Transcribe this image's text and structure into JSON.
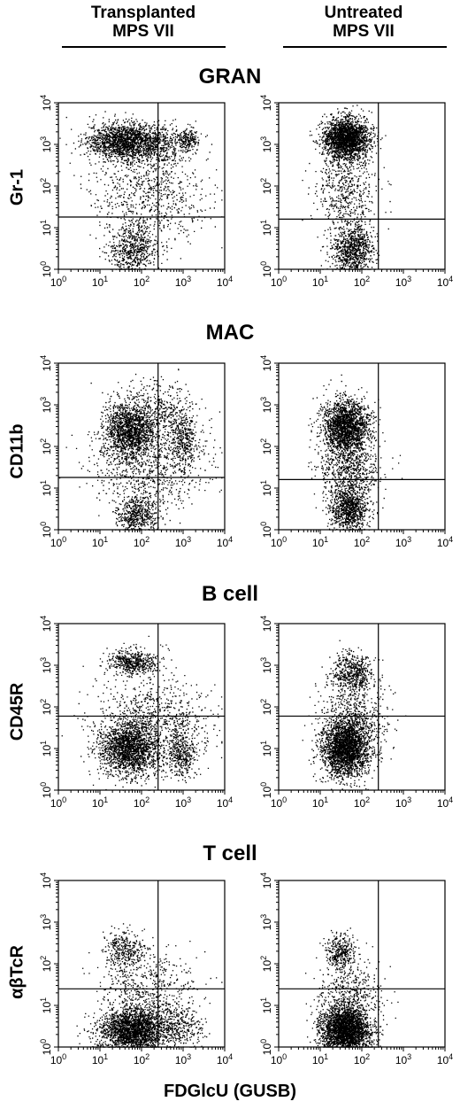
{
  "columns": [
    {
      "line1": "Transplanted",
      "line2": "MPS VII"
    },
    {
      "line1": "Untreated",
      "line2": "MPS VII"
    }
  ],
  "x_axis_label": "FDGlcU (GUSB)",
  "chart_data": [
    {
      "type": "scatter",
      "title": "GRAN",
      "ylabel": "Gr-1",
      "x_scale": "log",
      "y_scale": "log",
      "xlim": [
        1,
        10000
      ],
      "ylim": [
        1,
        10000
      ],
      "xticks": [
        "10^0",
        "10^1",
        "10^2",
        "10^3",
        "10^4"
      ],
      "yticks": [
        "10^0",
        "10^1",
        "10^2",
        "10^3",
        "10^4"
      ],
      "series": [
        {
          "column": "Transplanted MPS VII",
          "quadrant_x": 250,
          "quadrant_y": 18,
          "clusters": [
            {
              "x": 40,
              "y": 1200,
              "spread_x": 0.45,
              "spread_y": 0.22,
              "weight": 0.48
            },
            {
              "x": 1300,
              "y": 1400,
              "spread_x": 0.12,
              "spread_y": 0.12,
              "weight": 0.05
            },
            {
              "x": 300,
              "y": 1000,
              "spread_x": 0.35,
              "spread_y": 0.25,
              "weight": 0.1
            },
            {
              "x": 60,
              "y": 3,
              "spread_x": 0.3,
              "spread_y": 0.3,
              "weight": 0.17
            },
            {
              "x": 150,
              "y": 60,
              "spread_x": 0.7,
              "spread_y": 0.55,
              "weight": 0.2
            }
          ]
        },
        {
          "column": "Untreated MPS VII",
          "quadrant_x": 250,
          "quadrant_y": 16,
          "clusters": [
            {
              "x": 40,
              "y": 1400,
              "spread_x": 0.28,
              "spread_y": 0.25,
              "weight": 0.6
            },
            {
              "x": 60,
              "y": 3,
              "spread_x": 0.25,
              "spread_y": 0.3,
              "weight": 0.25
            },
            {
              "x": 40,
              "y": 80,
              "spread_x": 0.35,
              "spread_y": 0.5,
              "weight": 0.15
            }
          ]
        }
      ]
    },
    {
      "type": "scatter",
      "title": "MAC",
      "ylabel": "CD11b",
      "x_scale": "log",
      "y_scale": "log",
      "xlim": [
        1,
        10000
      ],
      "ylim": [
        1,
        10000
      ],
      "xticks": [
        "10^0",
        "10^1",
        "10^2",
        "10^3",
        "10^4"
      ],
      "yticks": [
        "10^0",
        "10^1",
        "10^2",
        "10^3",
        "10^4"
      ],
      "series": [
        {
          "column": "Transplanted MPS VII",
          "quadrant_x": 250,
          "quadrant_y": 18,
          "clusters": [
            {
              "x": 50,
              "y": 250,
              "spread_x": 0.32,
              "spread_y": 0.35,
              "weight": 0.45
            },
            {
              "x": 1000,
              "y": 150,
              "spread_x": 0.15,
              "spread_y": 0.3,
              "weight": 0.1
            },
            {
              "x": 300,
              "y": 800,
              "spread_x": 0.45,
              "spread_y": 0.35,
              "weight": 0.1
            },
            {
              "x": 80,
              "y": 2.5,
              "spread_x": 0.25,
              "spread_y": 0.25,
              "weight": 0.15
            },
            {
              "x": 150,
              "y": 30,
              "spread_x": 0.7,
              "spread_y": 0.5,
              "weight": 0.2
            }
          ]
        },
        {
          "column": "Untreated MPS VII",
          "quadrant_x": 250,
          "quadrant_y": 16,
          "clusters": [
            {
              "x": 40,
              "y": 300,
              "spread_x": 0.28,
              "spread_y": 0.33,
              "weight": 0.55
            },
            {
              "x": 50,
              "y": 3,
              "spread_x": 0.22,
              "spread_y": 0.28,
              "weight": 0.25
            },
            {
              "x": 50,
              "y": 30,
              "spread_x": 0.35,
              "spread_y": 0.4,
              "weight": 0.2
            }
          ]
        }
      ]
    },
    {
      "type": "scatter",
      "title": "B cell",
      "ylabel": "CD45R",
      "x_scale": "log",
      "y_scale": "log",
      "xlim": [
        1,
        10000
      ],
      "ylim": [
        1,
        10000
      ],
      "xticks": [
        "10^0",
        "10^1",
        "10^2",
        "10^3",
        "10^4"
      ],
      "yticks": [
        "10^0",
        "10^1",
        "10^2",
        "10^3",
        "10^4"
      ],
      "series": [
        {
          "column": "Transplanted MPS VII",
          "quadrant_x": 250,
          "quadrant_y": 60,
          "clusters": [
            {
              "x": 50,
              "y": 10,
              "spread_x": 0.35,
              "spread_y": 0.33,
              "weight": 0.5
            },
            {
              "x": 60,
              "y": 1200,
              "spread_x": 0.3,
              "spread_y": 0.15,
              "weight": 0.15
            },
            {
              "x": 900,
              "y": 8,
              "spread_x": 0.15,
              "spread_y": 0.3,
              "weight": 0.1
            },
            {
              "x": 200,
              "y": 40,
              "spread_x": 0.7,
              "spread_y": 0.6,
              "weight": 0.25
            }
          ]
        },
        {
          "column": "Untreated MPS VII",
          "quadrant_x": 250,
          "quadrant_y": 60,
          "clusters": [
            {
              "x": 40,
              "y": 10,
              "spread_x": 0.28,
              "spread_y": 0.33,
              "weight": 0.65
            },
            {
              "x": 60,
              "y": 700,
              "spread_x": 0.25,
              "spread_y": 0.25,
              "weight": 0.15
            },
            {
              "x": 60,
              "y": 40,
              "spread_x": 0.4,
              "spread_y": 0.5,
              "weight": 0.2
            }
          ]
        }
      ]
    },
    {
      "type": "scatter",
      "title": "T cell",
      "ylabel": "αβTcR",
      "x_scale": "log",
      "y_scale": "log",
      "xlim": [
        1,
        10000
      ],
      "ylim": [
        1,
        10000
      ],
      "xticks": [
        "10^0",
        "10^1",
        "10^2",
        "10^3",
        "10^4"
      ],
      "yticks": [
        "10^0",
        "10^1",
        "10^2",
        "10^3",
        "10^4"
      ],
      "series": [
        {
          "column": "Transplanted MPS VII",
          "quadrant_x": 250,
          "quadrant_y": 25,
          "clusters": [
            {
              "x": 60,
              "y": 2.5,
              "spread_x": 0.4,
              "spread_y": 0.28,
              "weight": 0.65
            },
            {
              "x": 40,
              "y": 200,
              "spread_x": 0.25,
              "spread_y": 0.25,
              "weight": 0.1
            },
            {
              "x": 800,
              "y": 3,
              "spread_x": 0.3,
              "spread_y": 0.25,
              "weight": 0.1
            },
            {
              "x": 150,
              "y": 20,
              "spread_x": 0.6,
              "spread_y": 0.5,
              "weight": 0.15
            }
          ]
        },
        {
          "column": "Untreated MPS VII",
          "quadrant_x": 250,
          "quadrant_y": 25,
          "clusters": [
            {
              "x": 40,
              "y": 2.5,
              "spread_x": 0.3,
              "spread_y": 0.28,
              "weight": 0.75
            },
            {
              "x": 30,
              "y": 200,
              "spread_x": 0.18,
              "spread_y": 0.2,
              "weight": 0.1
            },
            {
              "x": 50,
              "y": 15,
              "spread_x": 0.4,
              "spread_y": 0.45,
              "weight": 0.15
            }
          ]
        }
      ]
    }
  ]
}
